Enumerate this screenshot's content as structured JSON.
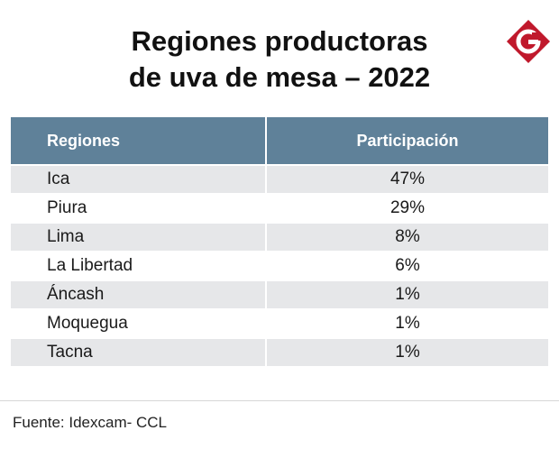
{
  "title": {
    "line1": "Regiones productoras",
    "line2": "de uva de mesa – 2022"
  },
  "logo": {
    "icon": "gestion-logo-icon",
    "letter": "G",
    "color": "#c0192c"
  },
  "colors": {
    "header_bg": "#5f8199",
    "row_alt_bg": "#e6e7e9"
  },
  "chart_data": {
    "type": "table",
    "title": "Regiones productoras de uva de mesa – 2022",
    "columns": [
      "Regiones",
      "Participación"
    ],
    "rows": [
      [
        "Ica",
        "47%"
      ],
      [
        "Piura",
        "29%"
      ],
      [
        "Lima",
        "8%"
      ],
      [
        "La Libertad",
        "6%"
      ],
      [
        "Áncash",
        "1%"
      ],
      [
        "Moquegua",
        "1%"
      ],
      [
        "Tacna",
        "1%"
      ]
    ]
  },
  "source": "Fuente:  Idexcam- CCL"
}
